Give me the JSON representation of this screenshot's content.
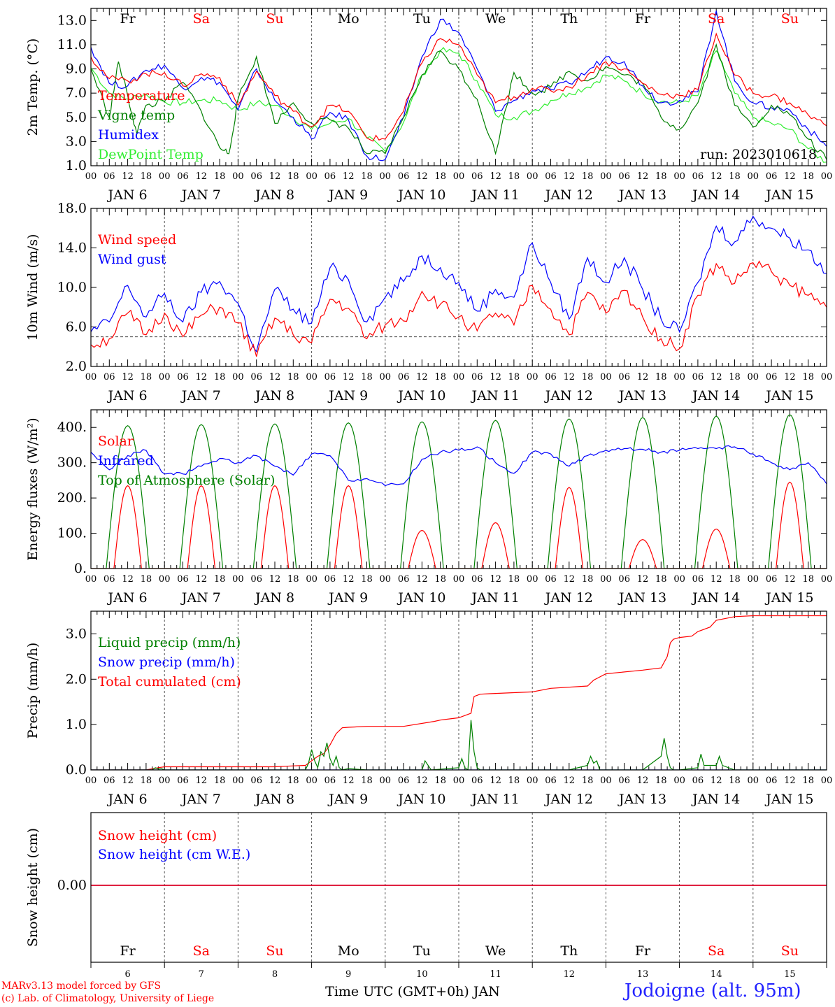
{
  "chart_data": [
    {
      "type": "line",
      "ylabel": "2m Temp. (°C)",
      "ylim": [
        1.0,
        14.0
      ],
      "yticks": [
        "1.0",
        "3.0",
        "5.0",
        "7.0",
        "9.0",
        "11.0",
        "13.0"
      ],
      "x_unit": "hours since 2023-01-06 00 UTC",
      "run": "run: 2023010618",
      "series": [
        {
          "name": "Temperature",
          "color": "#ff0000",
          "x": [
            0,
            6,
            12,
            18,
            24,
            30,
            36,
            42,
            48,
            54,
            60,
            66,
            72,
            78,
            84,
            90,
            96,
            102,
            108,
            114,
            120,
            126,
            132,
            138,
            144,
            150,
            156,
            162,
            168,
            174,
            180,
            186,
            192,
            198,
            204,
            210,
            216,
            222,
            228,
            234,
            240
          ],
          "y": [
            10.0,
            8.2,
            8.0,
            8.6,
            8.7,
            7.6,
            8.6,
            8.3,
            6.0,
            8.8,
            6.8,
            5.5,
            4.2,
            6.0,
            5.5,
            3.3,
            3.2,
            5.5,
            9.5,
            11.5,
            11.0,
            8.5,
            6.2,
            6.7,
            7.4,
            7.2,
            7.5,
            8.5,
            9.6,
            9.0,
            7.8,
            6.9,
            6.8,
            7.3,
            11.9,
            8.5,
            7.0,
            6.8,
            6.2,
            5.2,
            4.3
          ]
        },
        {
          "name": "Vigne temp",
          "color": "#008000",
          "x": [
            0,
            6,
            9,
            12,
            15,
            18,
            24,
            30,
            36,
            42,
            45,
            48,
            54,
            60,
            66,
            72,
            78,
            84,
            90,
            96,
            102,
            108,
            114,
            120,
            126,
            132,
            138,
            144,
            150,
            156,
            162,
            168,
            174,
            180,
            186,
            192,
            198,
            204,
            210,
            216,
            222,
            228,
            234,
            240
          ],
          "y": [
            9.0,
            5.0,
            9.6,
            6.8,
            3.6,
            6.0,
            6.3,
            7.9,
            5.5,
            2.5,
            2.0,
            6.5,
            10.0,
            4.5,
            6.2,
            4.5,
            4.8,
            4.1,
            2.0,
            2.0,
            5.0,
            8.5,
            10.5,
            9.0,
            6.5,
            2.0,
            8.7,
            7.0,
            7.5,
            8.8,
            8.0,
            9.2,
            8.5,
            7.8,
            5.0,
            4.0,
            6.2,
            11.0,
            6.0,
            4.2,
            6.0,
            5.2,
            3.2,
            1.5
          ]
        },
        {
          "name": "Humidex",
          "color": "#0000ff",
          "x": [
            0,
            6,
            12,
            18,
            24,
            30,
            36,
            42,
            48,
            54,
            60,
            66,
            72,
            78,
            84,
            90,
            96,
            102,
            108,
            114,
            120,
            126,
            132,
            138,
            144,
            150,
            156,
            162,
            168,
            174,
            180,
            186,
            192,
            198,
            204,
            210,
            216,
            222,
            228,
            234,
            240
          ],
          "y": [
            10.8,
            7.8,
            7.6,
            8.9,
            9.3,
            7.4,
            8.3,
            7.9,
            5.6,
            9.0,
            6.4,
            5.0,
            3.2,
            5.4,
            4.8,
            1.8,
            1.5,
            5.0,
            10.0,
            13.1,
            12.0,
            9.0,
            5.5,
            6.4,
            7.2,
            7.3,
            7.8,
            8.8,
            10.0,
            9.6,
            7.6,
            6.2,
            6.4,
            7.1,
            13.8,
            8.0,
            6.2,
            5.8,
            5.6,
            4.0,
            2.6
          ]
        },
        {
          "name": "DewPoint Temp",
          "color": "#33ee33",
          "x": [
            0,
            6,
            12,
            18,
            24,
            30,
            36,
            42,
            48,
            54,
            60,
            66,
            72,
            78,
            84,
            90,
            96,
            102,
            108,
            114,
            120,
            126,
            132,
            138,
            144,
            150,
            156,
            162,
            168,
            174,
            180,
            186,
            192,
            198,
            204,
            210,
            216,
            222,
            228,
            234,
            240
          ],
          "y": [
            9.1,
            7.0,
            6.5,
            6.9,
            6.3,
            6.2,
            6.4,
            6.4,
            5.6,
            6.2,
            6.0,
            5.0,
            4.0,
            4.5,
            4.9,
            3.3,
            2.2,
            4.6,
            8.5,
            10.5,
            10.3,
            8.0,
            5.2,
            5.0,
            5.5,
            6.4,
            7.0,
            7.5,
            8.5,
            8.0,
            7.0,
            6.3,
            6.2,
            6.8,
            10.5,
            7.0,
            5.0,
            4.5,
            4.0,
            2.4,
            1.3
          ]
        }
      ]
    },
    {
      "type": "line",
      "ylabel": "10m Wind (m/s)",
      "ylim": [
        2.0,
        18.0
      ],
      "yticks": [
        "2.0",
        "6.0",
        "10.0",
        "14.0",
        "18.0"
      ],
      "reference_line": 5.0,
      "series": [
        {
          "name": "Wind speed",
          "color": "#ff0000",
          "x": [
            0,
            6,
            12,
            18,
            24,
            30,
            36,
            42,
            48,
            54,
            60,
            66,
            72,
            78,
            84,
            90,
            96,
            102,
            108,
            114,
            120,
            126,
            132,
            138,
            144,
            150,
            156,
            162,
            168,
            174,
            180,
            186,
            192,
            198,
            204,
            210,
            216,
            222,
            228,
            234,
            240
          ],
          "y": [
            4.2,
            4.8,
            7.4,
            5.2,
            7.4,
            5.0,
            7.2,
            8.0,
            6.4,
            3.0,
            6.9,
            5.2,
            4.4,
            8.8,
            7.9,
            4.8,
            6.2,
            6.6,
            9.6,
            8.3,
            7.0,
            5.6,
            7.4,
            6.2,
            10.2,
            7.8,
            5.2,
            9.5,
            7.4,
            9.7,
            7.0,
            4.8,
            3.8,
            9.2,
            12.4,
            10.4,
            12.5,
            11.6,
            10.2,
            9.2,
            8.0
          ]
        },
        {
          "name": "Wind gust",
          "color": "#0000ff",
          "x": [
            0,
            6,
            12,
            18,
            24,
            30,
            36,
            42,
            48,
            54,
            60,
            66,
            72,
            78,
            84,
            90,
            96,
            102,
            108,
            114,
            120,
            126,
            132,
            138,
            144,
            150,
            156,
            162,
            168,
            174,
            180,
            186,
            192,
            198,
            204,
            210,
            216,
            222,
            228,
            234,
            240
          ],
          "y": [
            5.5,
            6.5,
            10.2,
            7.0,
            9.4,
            6.5,
            9.5,
            10.6,
            8.4,
            3.5,
            9.8,
            7.8,
            6.4,
            12.0,
            10.8,
            6.5,
            9.0,
            10.6,
            13.2,
            12.0,
            10.5,
            7.6,
            9.8,
            9.0,
            14.5,
            10.5,
            6.8,
            13.0,
            10.5,
            13.0,
            9.8,
            6.8,
            5.5,
            10.5,
            16.2,
            14.6,
            17.2,
            16.0,
            15.0,
            13.8,
            11.4
          ]
        }
      ]
    },
    {
      "type": "line",
      "ylabel": "Energy fluxes (W/m²)",
      "ylim": [
        0,
        450
      ],
      "yticks": [
        "0.",
        "100.",
        "200.",
        "300.",
        "400."
      ],
      "series": [
        {
          "name": "Solar",
          "color": "#ff0000",
          "peaks": [
            {
              "center": 12,
              "value": 235
            },
            {
              "center": 36,
              "value": 235
            },
            {
              "center": 60,
              "value": 235
            },
            {
              "center": 84,
              "value": 235
            },
            {
              "center": 108,
              "value": 108
            },
            {
              "center": 132,
              "value": 130
            },
            {
              "center": 156,
              "value": 230
            },
            {
              "center": 180,
              "value": 82
            },
            {
              "center": 204,
              "value": 112
            },
            {
              "center": 228,
              "value": 245
            }
          ]
        },
        {
          "name": "Infrared",
          "color": "#0000ff",
          "x": [
            0,
            6,
            12,
            18,
            24,
            30,
            36,
            42,
            48,
            54,
            60,
            66,
            72,
            78,
            84,
            90,
            96,
            102,
            108,
            114,
            120,
            126,
            132,
            138,
            144,
            150,
            156,
            162,
            168,
            174,
            180,
            186,
            192,
            198,
            204,
            210,
            216,
            222,
            228,
            234,
            240
          ],
          "y": [
            330,
            280,
            320,
            335,
            268,
            268,
            290,
            312,
            300,
            320,
            290,
            265,
            325,
            320,
            250,
            255,
            235,
            240,
            310,
            330,
            335,
            345,
            300,
            270,
            330,
            325,
            290,
            320,
            335,
            340,
            338,
            330,
            335,
            340,
            340,
            345,
            325,
            300,
            280,
            300,
            240
          ]
        },
        {
          "name": "Top of Atmosphere (Solar)",
          "color": "#008000",
          "peaks": [
            {
              "center": 12,
              "value": 405
            },
            {
              "center": 36,
              "value": 408
            },
            {
              "center": 60,
              "value": 410
            },
            {
              "center": 84,
              "value": 413
            },
            {
              "center": 108,
              "value": 416
            },
            {
              "center": 132,
              "value": 420
            },
            {
              "center": 156,
              "value": 424
            },
            {
              "center": 180,
              "value": 428
            },
            {
              "center": 204,
              "value": 432
            },
            {
              "center": 228,
              "value": 436
            }
          ]
        }
      ]
    },
    {
      "type": "line",
      "ylabel": "Precip (mm/h)",
      "ylim": [
        0.0,
        3.5
      ],
      "yticks": [
        "0.0",
        "1.0",
        "2.0",
        "3.0"
      ],
      "series": [
        {
          "name": "Liquid precip (mm/h)",
          "color": "#008000",
          "x": [
            0,
            20,
            21,
            22,
            23,
            24,
            30,
            70,
            71,
            72,
            73,
            74,
            75,
            76,
            77,
            78,
            79,
            80,
            81,
            82,
            84,
            90,
            108,
            109,
            110,
            111,
            120,
            121,
            122,
            123,
            124,
            125,
            126,
            127,
            128,
            132,
            156,
            162,
            163,
            164,
            165,
            166,
            170,
            180,
            186,
            187,
            188,
            189,
            190,
            192,
            198,
            199,
            200,
            204,
            205,
            206,
            210,
            240
          ],
          "y": [
            0,
            0,
            0.05,
            0.02,
            0.03,
            0,
            0,
            0,
            0.15,
            0.45,
            0.2,
            0.05,
            0.4,
            0.3,
            0.6,
            0.25,
            0.1,
            0.3,
            0.05,
            0,
            0.03,
            0,
            0,
            0.2,
            0.1,
            0,
            0.05,
            0.25,
            0.05,
            0,
            1.1,
            0.4,
            0.05,
            0,
            0,
            0,
            0,
            0.1,
            0.3,
            0.15,
            0.2,
            0,
            0,
            0,
            0.3,
            0.7,
            0.3,
            0.05,
            0,
            0,
            0.05,
            0.35,
            0.1,
            0.1,
            0.3,
            0.1,
            0,
            0
          ]
        },
        {
          "name": "Snow precip (mm/h)",
          "color": "#0000ff",
          "x": [
            0,
            240
          ],
          "y": [
            0,
            0
          ]
        },
        {
          "name": "Total cumulated (cm)",
          "color": "#ff0000",
          "x": [
            0,
            18,
            22,
            24,
            60,
            66,
            70,
            72,
            74,
            76,
            78,
            80,
            82,
            84,
            90,
            102,
            112,
            114,
            120,
            124,
            125,
            127,
            130,
            144,
            150,
            162,
            164,
            168,
            180,
            186,
            188,
            189,
            190,
            192,
            196,
            198,
            202,
            204,
            210,
            216,
            240
          ],
          "y": [
            0,
            0,
            0.05,
            0.07,
            0.07,
            0.09,
            0.1,
            0.2,
            0.3,
            0.36,
            0.55,
            0.8,
            0.93,
            0.94,
            0.96,
            0.96,
            1.07,
            1.1,
            1.15,
            1.25,
            1.62,
            1.67,
            1.68,
            1.72,
            1.8,
            1.85,
            1.98,
            2.12,
            2.2,
            2.25,
            2.5,
            2.8,
            2.88,
            2.92,
            2.95,
            3.05,
            3.15,
            3.3,
            3.38,
            3.4,
            3.4
          ]
        }
      ]
    },
    {
      "type": "line",
      "ylabel": "Snow height (cm)",
      "yticks": [
        "0.00"
      ],
      "series": [
        {
          "name": "Snow height (cm)",
          "color": "#ff0000",
          "x": [
            0,
            240
          ],
          "y": [
            0,
            0
          ]
        },
        {
          "name": "Snow height (cm W.E.)",
          "color": "#0000ff",
          "x": [
            0,
            240
          ],
          "y": [
            0,
            0
          ]
        }
      ]
    }
  ],
  "weekdays": [
    {
      "label": "Fr",
      "color": "#000000"
    },
    {
      "label": "Sa",
      "color": "#ff0000"
    },
    {
      "label": "Su",
      "color": "#ff0000"
    },
    {
      "label": "Mo",
      "color": "#000000"
    },
    {
      "label": "Tu",
      "color": "#000000"
    },
    {
      "label": "We",
      "color": "#000000"
    },
    {
      "label": "Th",
      "color": "#000000"
    },
    {
      "label": "Fr",
      "color": "#000000"
    },
    {
      "label": "Sa",
      "color": "#ff0000"
    },
    {
      "label": "Su",
      "color": "#ff0000"
    }
  ],
  "hour_ticks": [
    "00",
    "06",
    "12",
    "18"
  ],
  "hour_end_tick": "00",
  "day_labels": [
    "JAN  6",
    "JAN  7",
    "JAN  8",
    "JAN  9",
    "JAN 10",
    "JAN 11",
    "JAN 12",
    "JAN 13",
    "JAN 14",
    "JAN 15"
  ],
  "day_numbers": [
    "6",
    "7",
    "8",
    "9",
    "10",
    "11",
    "12",
    "13",
    "14",
    "15"
  ],
  "xlabel": "Time UTC (GMT+0h) JAN",
  "footer": {
    "credit_line1": "MARv3.13 model forced by GFS",
    "credit_line2": "(c) Lab. of Climatology, University of Liege",
    "station": "Jodoigne (alt. 95m)"
  }
}
